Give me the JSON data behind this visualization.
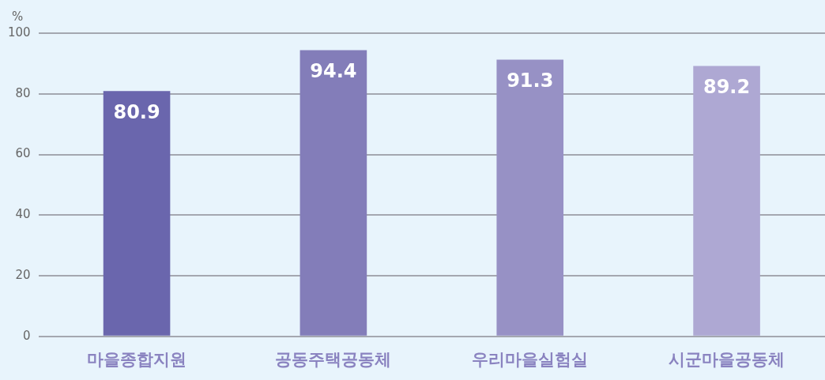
{
  "chart_data": {
    "type": "bar",
    "ylabel": "%",
    "categories": [
      "마을종합지원",
      "공동주택공동체",
      "우리마을실험실",
      "시군마을공동체"
    ],
    "values": [
      80.9,
      94.4,
      91.3,
      89.2
    ],
    "colors": [
      "#6a66ad",
      "#837db9",
      "#9791c5",
      "#aea8d3"
    ],
    "ylim": [
      0,
      100
    ],
    "yticks": [
      0,
      20,
      40,
      60,
      80,
      100
    ],
    "grid": "y",
    "data_labels": true
  }
}
